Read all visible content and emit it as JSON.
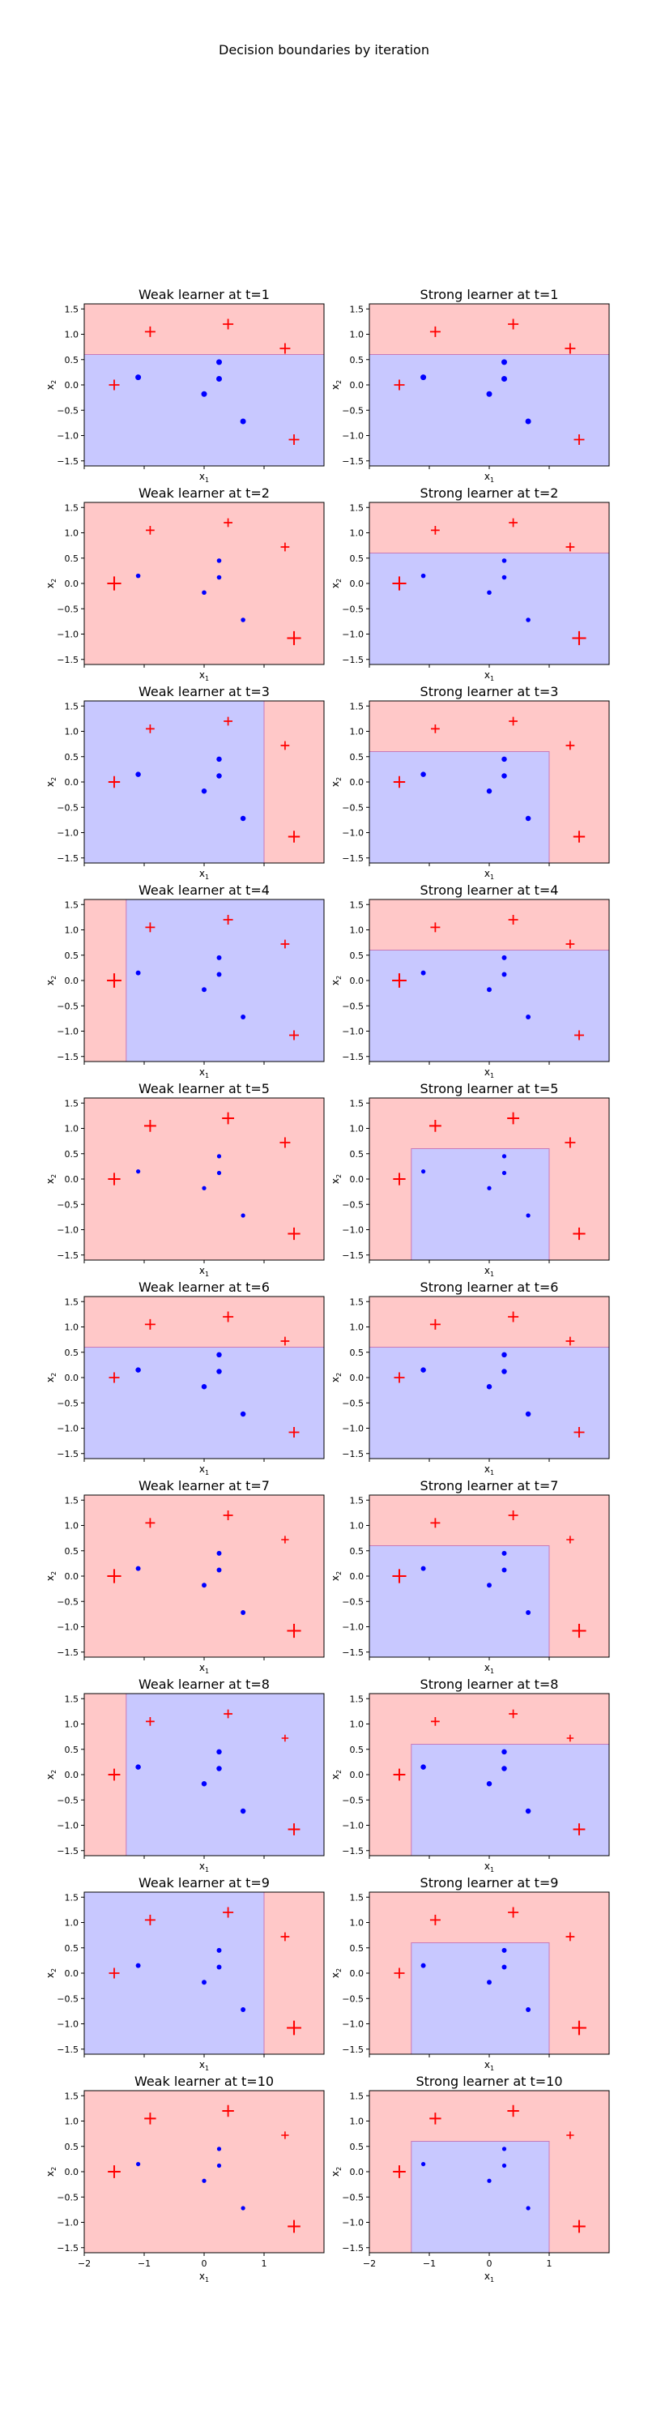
{
  "figure": {
    "suptitle": "Decision boundaries by iteration"
  },
  "colors": {
    "positive_region": "#ffc8c8",
    "negative_region": "#c8c8ff",
    "positive_marker": "#ff0000",
    "negative_marker": "#0000ff",
    "boundary": "#c77ab8"
  },
  "axes_common": {
    "xlabel": "x",
    "xlabel_sub": "1",
    "ylabel": "x",
    "ylabel_sub": "2",
    "xlim": [
      -2,
      2
    ],
    "ylim": [
      -1.6,
      1.6
    ],
    "x_ticks": [
      "−2",
      "−1",
      "0",
      "1"
    ],
    "x_tick_values": [
      -2,
      -1,
      0,
      1
    ],
    "y_ticks": [
      "1.5",
      "1.0",
      "0.5",
      "0.0",
      "−0.5",
      "−1.0",
      "−1.5"
    ],
    "y_tick_values": [
      1.5,
      1.0,
      0.5,
      0.0,
      -0.5,
      -1.0,
      -1.5
    ]
  },
  "chart_data": {
    "type": "scatter",
    "points": [
      {
        "x": -1.5,
        "y": 0.0,
        "label": "+"
      },
      {
        "x": -0.9,
        "y": 1.05,
        "label": "+"
      },
      {
        "x": 0.4,
        "y": 1.2,
        "label": "+"
      },
      {
        "x": 1.35,
        "y": 0.72,
        "label": "+"
      },
      {
        "x": 1.5,
        "y": -1.08,
        "label": "+"
      },
      {
        "x": -1.1,
        "y": 0.15,
        "label": "-"
      },
      {
        "x": 0.25,
        "y": 0.45,
        "label": "-"
      },
      {
        "x": 0.25,
        "y": 0.12,
        "label": "-"
      },
      {
        "x": 0.0,
        "y": -0.18,
        "label": "-"
      },
      {
        "x": 0.65,
        "y": -0.72,
        "label": "-"
      }
    ],
    "panels": [
      {
        "title": "Weak learner at t=1",
        "regions": [
          {
            "x": [
              -2,
              2
            ],
            "y": [
              0.6,
              1.6
            ],
            "class": "+"
          },
          {
            "x": [
              -2,
              2
            ],
            "y": [
              -1.6,
              0.6
            ],
            "class": "-"
          }
        ],
        "weights": [
          1.0,
          1.0,
          1.0,
          1.0,
          1.0,
          1.0,
          1.0,
          1.0,
          1.0,
          1.0
        ]
      },
      {
        "title": "Strong learner at t=1",
        "regions": [
          {
            "x": [
              -2,
              2
            ],
            "y": [
              0.6,
              1.6
            ],
            "class": "+"
          },
          {
            "x": [
              -2,
              2
            ],
            "y": [
              -1.6,
              0.6
            ],
            "class": "-"
          }
        ],
        "weights": [
          1.0,
          1.0,
          1.0,
          1.0,
          1.0,
          1.0,
          1.0,
          1.0,
          1.0,
          1.0
        ]
      },
      {
        "title": "Weak learner at t=2",
        "regions": [
          {
            "x": [
              -2,
              2
            ],
            "y": [
              -1.6,
              1.6
            ],
            "class": "+"
          }
        ],
        "weights": [
          2.0,
          0.6,
          0.6,
          0.6,
          2.0,
          0.5,
          0.5,
          0.5,
          0.5,
          0.5
        ]
      },
      {
        "title": "Strong learner at t=2",
        "regions": [
          {
            "x": [
              -2,
              2
            ],
            "y": [
              0.6,
              1.6
            ],
            "class": "+"
          },
          {
            "x": [
              -2,
              2
            ],
            "y": [
              -1.6,
              0.6
            ],
            "class": "-"
          }
        ],
        "weights": [
          2.0,
          0.6,
          0.6,
          0.6,
          2.0,
          0.5,
          0.5,
          0.5,
          0.5,
          0.5
        ]
      },
      {
        "title": "Weak learner at t=3",
        "regions": [
          {
            "x": [
              -2,
              1.0
            ],
            "y": [
              -1.6,
              1.6
            ],
            "class": "-"
          },
          {
            "x": [
              1.0,
              2
            ],
            "y": [
              -1.6,
              1.6
            ],
            "class": "+"
          }
        ],
        "weights": [
          1.3,
          0.6,
          0.6,
          0.6,
          1.3,
          0.8,
          0.8,
          0.8,
          0.8,
          0.8
        ]
      },
      {
        "title": "Strong learner at t=3",
        "regions": [
          {
            "x": [
              -2,
              2
            ],
            "y": [
              -1.6,
              1.6
            ],
            "class": "+"
          },
          {
            "x": [
              -2,
              1.0
            ],
            "y": [
              -1.6,
              0.6
            ],
            "class": "-"
          }
        ],
        "weights": [
          1.3,
          0.6,
          0.6,
          0.6,
          1.3,
          0.8,
          0.8,
          0.8,
          0.8,
          0.8
        ]
      },
      {
        "title": "Weak learner at t=4",
        "regions": [
          {
            "x": [
              -2,
              -1.3
            ],
            "y": [
              -1.6,
              1.6
            ],
            "class": "+"
          },
          {
            "x": [
              -1.3,
              2
            ],
            "y": [
              -1.6,
              1.6
            ],
            "class": "-"
          }
        ],
        "weights": [
          2.2,
          0.8,
          0.8,
          0.6,
          0.8,
          0.6,
          0.6,
          0.6,
          0.6,
          0.6
        ]
      },
      {
        "title": "Strong learner at t=4",
        "regions": [
          {
            "x": [
              -2,
              2
            ],
            "y": [
              0.6,
              1.6
            ],
            "class": "+"
          },
          {
            "x": [
              -2,
              2
            ],
            "y": [
              -1.6,
              0.6
            ],
            "class": "-"
          }
        ],
        "weights": [
          2.2,
          0.8,
          0.8,
          0.6,
          0.8,
          0.6,
          0.6,
          0.6,
          0.6,
          0.6
        ]
      },
      {
        "title": "Weak learner at t=5",
        "regions": [
          {
            "x": [
              -2,
              2
            ],
            "y": [
              -1.6,
              1.6
            ],
            "class": "+"
          }
        ],
        "weights": [
          1.5,
          1.4,
          1.4,
          1.0,
          1.5,
          0.4,
          0.4,
          0.4,
          0.4,
          0.4
        ]
      },
      {
        "title": "Strong learner at t=5",
        "regions": [
          {
            "x": [
              -2,
              2
            ],
            "y": [
              -1.6,
              1.6
            ],
            "class": "+"
          },
          {
            "x": [
              -1.3,
              1.0
            ],
            "y": [
              -1.6,
              0.6
            ],
            "class": "-"
          }
        ],
        "weights": [
          1.5,
          1.4,
          1.4,
          1.0,
          1.5,
          0.4,
          0.4,
          0.4,
          0.4,
          0.4
        ]
      },
      {
        "title": "Weak learner at t=6",
        "regions": [
          {
            "x": [
              -2,
              2
            ],
            "y": [
              0.6,
              1.6
            ],
            "class": "+"
          },
          {
            "x": [
              -2,
              2
            ],
            "y": [
              -1.6,
              0.6
            ],
            "class": "-"
          }
        ],
        "weights": [
          1.0,
          1.0,
          1.0,
          0.6,
          1.0,
          0.8,
          0.8,
          0.8,
          0.8,
          0.8
        ]
      },
      {
        "title": "Strong learner at t=6",
        "regions": [
          {
            "x": [
              -2,
              2
            ],
            "y": [
              0.6,
              1.6
            ],
            "class": "+"
          },
          {
            "x": [
              -2,
              2
            ],
            "y": [
              -1.6,
              0.6
            ],
            "class": "-"
          }
        ],
        "weights": [
          1.0,
          1.0,
          1.0,
          0.6,
          1.0,
          0.8,
          0.8,
          0.8,
          0.8,
          0.8
        ]
      },
      {
        "title": "Weak learner at t=7",
        "regions": [
          {
            "x": [
              -2,
              2
            ],
            "y": [
              -1.6,
              1.6
            ],
            "class": "+"
          }
        ],
        "weights": [
          2.0,
          0.8,
          0.8,
          0.4,
          2.0,
          0.6,
          0.6,
          0.6,
          0.6,
          0.6
        ]
      },
      {
        "title": "Strong learner at t=7",
        "regions": [
          {
            "x": [
              -2,
              2
            ],
            "y": [
              -1.6,
              1.6
            ],
            "class": "+"
          },
          {
            "x": [
              -2,
              1.0
            ],
            "y": [
              -1.6,
              0.6
            ],
            "class": "-"
          }
        ],
        "weights": [
          2.0,
          0.8,
          0.8,
          0.4,
          2.0,
          0.6,
          0.6,
          0.6,
          0.6,
          0.6
        ]
      },
      {
        "title": "Weak learner at t=8",
        "regions": [
          {
            "x": [
              -2,
              -1.3
            ],
            "y": [
              -1.6,
              1.6
            ],
            "class": "+"
          },
          {
            "x": [
              -1.3,
              2
            ],
            "y": [
              -1.6,
              1.6
            ],
            "class": "-"
          }
        ],
        "weights": [
          1.4,
          0.6,
          0.6,
          0.3,
          1.4,
          0.8,
          0.8,
          0.8,
          0.8,
          0.8
        ]
      },
      {
        "title": "Strong learner at t=8",
        "regions": [
          {
            "x": [
              -2,
              2
            ],
            "y": [
              -1.6,
              1.6
            ],
            "class": "+"
          },
          {
            "x": [
              -1.3,
              2
            ],
            "y": [
              -1.6,
              0.6
            ],
            "class": "-"
          }
        ],
        "weights": [
          1.4,
          0.6,
          0.6,
          0.3,
          1.4,
          0.8,
          0.8,
          0.8,
          0.8,
          0.8
        ]
      },
      {
        "title": "Weak learner at t=9",
        "regions": [
          {
            "x": [
              -2,
              1.0
            ],
            "y": [
              -1.6,
              1.6
            ],
            "class": "-"
          },
          {
            "x": [
              1.0,
              2
            ],
            "y": [
              -1.6,
              1.6
            ],
            "class": "+"
          }
        ],
        "weights": [
          1.0,
          1.0,
          1.0,
          0.6,
          2.2,
          0.6,
          0.6,
          0.6,
          0.6,
          0.6
        ]
      },
      {
        "title": "Strong learner at t=9",
        "regions": [
          {
            "x": [
              -2,
              2
            ],
            "y": [
              -1.6,
              1.6
            ],
            "class": "+"
          },
          {
            "x": [
              -1.3,
              1.0
            ],
            "y": [
              -1.6,
              0.6
            ],
            "class": "-"
          }
        ],
        "weights": [
          1.0,
          1.0,
          1.0,
          0.6,
          2.2,
          0.6,
          0.6,
          0.6,
          0.6,
          0.6
        ]
      },
      {
        "title": "Weak learner at t=10",
        "regions": [
          {
            "x": [
              -2,
              2
            ],
            "y": [
              -1.6,
              1.6
            ],
            "class": "+"
          }
        ],
        "weights": [
          1.6,
          1.3,
          1.3,
          0.4,
          1.6,
          0.4,
          0.4,
          0.4,
          0.4,
          0.4
        ]
      },
      {
        "title": "Strong learner at t=10",
        "regions": [
          {
            "x": [
              -2,
              2
            ],
            "y": [
              -1.6,
              1.6
            ],
            "class": "+"
          },
          {
            "x": [
              -1.3,
              1.0
            ],
            "y": [
              -1.6,
              0.6
            ],
            "class": "-"
          }
        ],
        "weights": [
          1.6,
          1.3,
          1.3,
          0.4,
          1.6,
          0.4,
          0.4,
          0.4,
          0.4,
          0.4
        ]
      }
    ]
  }
}
